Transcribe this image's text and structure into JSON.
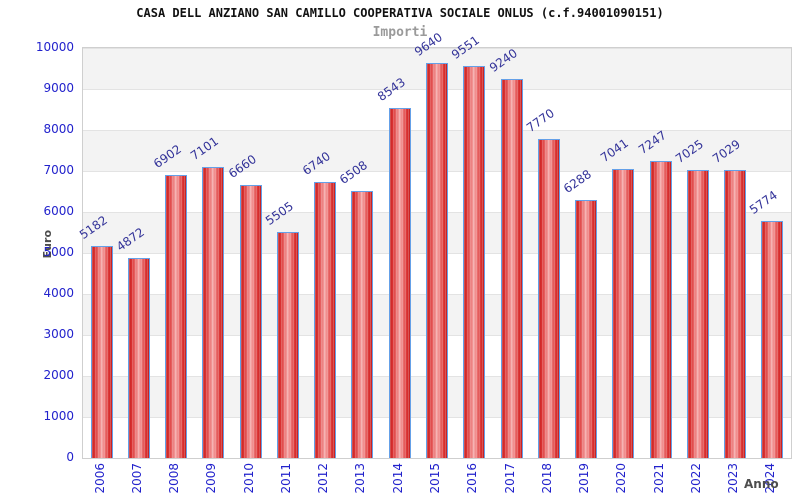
{
  "header": {
    "title": "CASA DELL ANZIANO SAN CAMILLO COOPERATIVA SOCIALE ONLUS (c.f.94001090151)",
    "subtitle": "Importi"
  },
  "axes": {
    "y_title": "Euro",
    "x_title": "Anno"
  },
  "chart_data": {
    "type": "bar",
    "title": "CASA DELL ANZIANO SAN CAMILLO COOPERATIVA SOCIALE ONLUS (c.f.94001090151)",
    "subtitle": "Importi",
    "xlabel": "Anno",
    "ylabel": "Euro",
    "categories": [
      "2006",
      "2007",
      "2008",
      "2009",
      "2010",
      "2011",
      "2012",
      "2013",
      "2014",
      "2015",
      "2016",
      "2017",
      "2018",
      "2019",
      "2020",
      "2021",
      "2022",
      "2023",
      "2024"
    ],
    "values": [
      5182,
      4872,
      6902,
      7101,
      6660,
      5505,
      6740,
      6508,
      8543,
      9640,
      9551,
      9240,
      7770,
      6288,
      7041,
      7247,
      7025,
      7029,
      5774
    ],
    "ylim": [
      0,
      10000
    ],
    "y_ticks": [
      0,
      1000,
      2000,
      3000,
      4000,
      5000,
      6000,
      7000,
      8000,
      9000,
      10000
    ],
    "grid": "horizontal-bands-alternating",
    "legend": "none",
    "colors": {
      "bar_fill": "#e03434",
      "bar_border": "#64a0e8",
      "value_label": "#333399",
      "tick_label": "#2222cc",
      "axis_title": "#4d4d4d",
      "band_gray": "#f3f3f3",
      "band_white": "#ffffff"
    }
  }
}
